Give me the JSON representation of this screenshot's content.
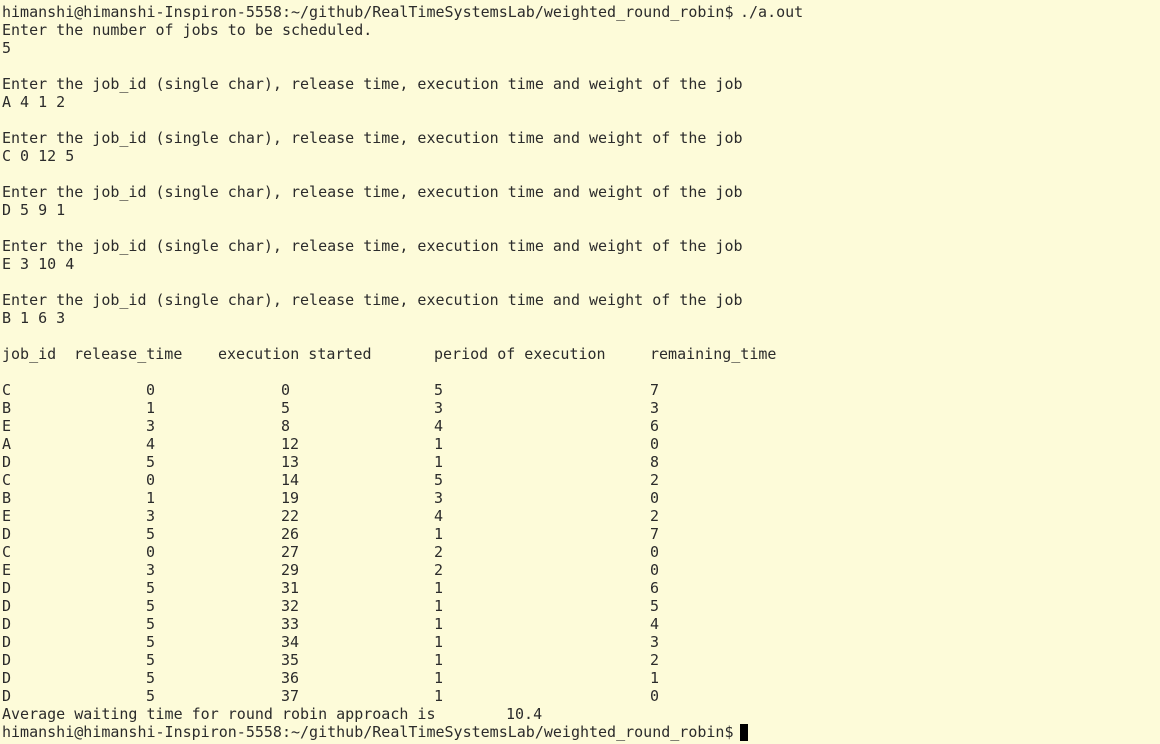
{
  "prompt": "himanshi@himanshi-Inspiron-5558:~/github/RealTimeSystemsLab/weighted_round_robin$",
  "command": "./a.out",
  "job_count_prompt": "Enter the number of jobs to be scheduled.",
  "job_count": "5",
  "job_inputs": [
    {
      "prompt": "Enter the job_id (single char), release time, execution time and weight of the job",
      "input": "A 4 1 2"
    },
    {
      "prompt": "Enter the job_id (single char), release time, execution time and weight of the job",
      "input": "C 0 12 5"
    },
    {
      "prompt": "Enter the job_id (single char), release time, execution time and weight of the job",
      "input": "D 5 9 1"
    },
    {
      "prompt": "Enter the job_id (single char), release time, execution time and weight of the job",
      "input": "E 3 10 4"
    },
    {
      "prompt": "Enter the job_id (single char), release time, execution time and weight of the job",
      "input": "B 1 6 3"
    }
  ],
  "table": {
    "header": [
      "job_id",
      "release_time",
      "execution started",
      "period of execution",
      "remaining_time"
    ],
    "rows": [
      [
        "C",
        0,
        0,
        5,
        7
      ],
      [
        "B",
        1,
        5,
        3,
        3
      ],
      [
        "E",
        3,
        8,
        4,
        6
      ],
      [
        "A",
        4,
        12,
        1,
        0
      ],
      [
        "D",
        5,
        13,
        1,
        8
      ],
      [
        "C",
        0,
        14,
        5,
        2
      ],
      [
        "B",
        1,
        19,
        3,
        0
      ],
      [
        "E",
        3,
        22,
        4,
        2
      ],
      [
        "D",
        5,
        26,
        1,
        7
      ],
      [
        "C",
        0,
        27,
        2,
        0
      ],
      [
        "E",
        3,
        29,
        2,
        0
      ],
      [
        "D",
        5,
        31,
        1,
        6
      ],
      [
        "D",
        5,
        32,
        1,
        5
      ],
      [
        "D",
        5,
        33,
        1,
        4
      ],
      [
        "D",
        5,
        34,
        1,
        3
      ],
      [
        "D",
        5,
        35,
        1,
        2
      ],
      [
        "D",
        5,
        36,
        1,
        1
      ],
      [
        "D",
        5,
        37,
        1,
        0
      ]
    ]
  },
  "average": {
    "label": "Average waiting time for round robin approach is",
    "value": "10.4"
  }
}
